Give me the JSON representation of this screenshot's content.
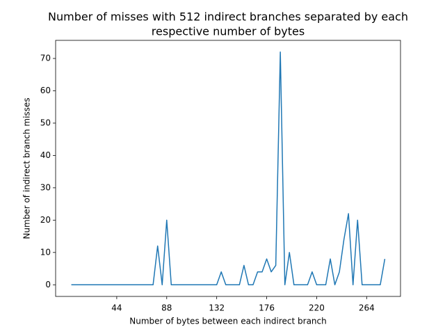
{
  "chart_data": {
    "type": "line",
    "title": [
      "Number of misses with 512 indirect branches separated by each",
      "respective number of bytes"
    ],
    "xlabel": "Number of bytes between each indirect branch",
    "ylabel": "Number of indirect branch misses",
    "x": [
      4,
      8,
      12,
      16,
      20,
      24,
      28,
      32,
      36,
      40,
      44,
      48,
      52,
      56,
      60,
      64,
      68,
      72,
      76,
      80,
      84,
      88,
      92,
      96,
      100,
      104,
      108,
      112,
      116,
      120,
      124,
      128,
      132,
      136,
      140,
      144,
      148,
      152,
      156,
      160,
      164,
      168,
      172,
      176,
      180,
      184,
      188,
      192,
      196,
      200,
      204,
      208,
      212,
      216,
      220,
      224,
      228,
      232,
      236,
      240,
      244,
      248,
      252,
      256,
      260,
      264,
      268,
      272,
      276,
      280
    ],
    "values": [
      0,
      0,
      0,
      0,
      0,
      0,
      0,
      0,
      0,
      0,
      0,
      0,
      0,
      0,
      0,
      0,
      0,
      0,
      0,
      12,
      0,
      20,
      0,
      0,
      0,
      0,
      0,
      0,
      0,
      0,
      0,
      0,
      0,
      4,
      0,
      0,
      0,
      0,
      6,
      0,
      0,
      4,
      4,
      8,
      4,
      6,
      72,
      0,
      10,
      0,
      0,
      0,
      0,
      4,
      0,
      0,
      0,
      8,
      0,
      4,
      14,
      22,
      0,
      20,
      0,
      0,
      0,
      0,
      0,
      8
    ],
    "color": "#1f77b4",
    "xlim": [
      -9.8,
      293.8
    ],
    "xticks": [
      44,
      88,
      132,
      176,
      220,
      264
    ],
    "ylim": [
      -3.6,
      75.6
    ],
    "yticks": [
      0,
      10,
      20,
      30,
      40,
      50,
      60,
      70
    ],
    "grid": false
  }
}
